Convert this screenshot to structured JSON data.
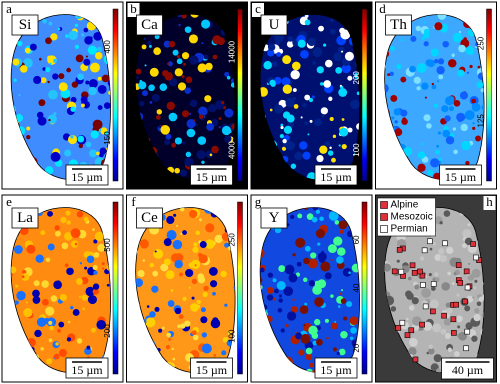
{
  "panels": [
    {
      "letter": "a",
      "element": "Si",
      "colorbar_ticks": [
        400,
        150
      ],
      "scale_bar": "15 µm"
    },
    {
      "letter": "b",
      "element": "Ca",
      "colorbar_ticks": [
        14000,
        4000
      ],
      "scale_bar": "15 µm"
    },
    {
      "letter": "c",
      "element": "U",
      "colorbar_ticks": [
        200,
        100
      ],
      "scale_bar": "15 µm"
    },
    {
      "letter": "d",
      "element": "Th",
      "colorbar_ticks": [
        250,
        125
      ],
      "scale_bar": "15 µm"
    },
    {
      "letter": "e",
      "element": "La",
      "colorbar_ticks": [
        500,
        200
      ],
      "scale_bar": "15 µm"
    },
    {
      "letter": "f",
      "element": "Ce",
      "colorbar_ticks": [
        250,
        100
      ],
      "scale_bar": "15 µm"
    },
    {
      "letter": "g",
      "element": "Y",
      "colorbar_ticks": [
        60,
        40,
        20
      ],
      "scale_bar": "15 µm"
    },
    {
      "letter": "h",
      "scale_bar": "40 µm"
    }
  ],
  "legend": {
    "items": [
      "Alpine",
      "Mesozoic",
      "Permian"
    ]
  }
}
